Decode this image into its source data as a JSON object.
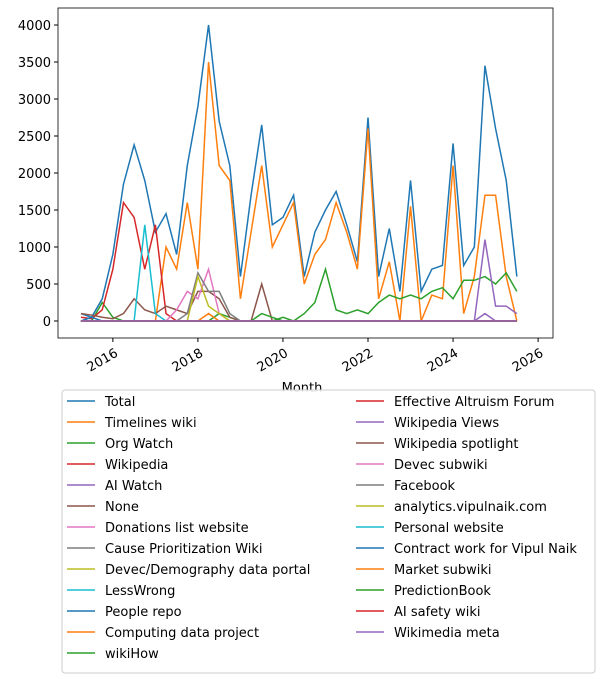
{
  "chart_data": {
    "type": "line",
    "x_label": "Month",
    "x": [
      2015.25,
      2015.5,
      2015.75,
      2016,
      2016.25,
      2016.5,
      2016.75,
      2017,
      2017.25,
      2017.5,
      2017.75,
      2018,
      2018.25,
      2018.5,
      2018.75,
      2019,
      2019.25,
      2019.5,
      2019.75,
      2020,
      2020.25,
      2020.5,
      2020.75,
      2021,
      2021.25,
      2021.5,
      2021.75,
      2022,
      2022.25,
      2022.5,
      2022.75,
      2023,
      2023.25,
      2023.5,
      2023.75,
      2024,
      2024.25,
      2024.5,
      2024.75,
      2025,
      2025.25,
      2025.5
    ],
    "xlim": [
      2014.71,
      2026.35
    ],
    "xticks": [
      2016,
      2018,
      2020,
      2022,
      2024,
      2026
    ],
    "ylim": [
      -230,
      4230
    ],
    "yticks": [
      0,
      500,
      1000,
      1500,
      2000,
      2500,
      3000,
      3500,
      4000
    ],
    "series": [
      {
        "name": "Total",
        "color": "#1f77b4",
        "values": [
          100,
          50,
          300,
          900,
          1850,
          2380,
          1900,
          1200,
          1450,
          900,
          2100,
          2900,
          4000,
          2700,
          2100,
          600,
          1700,
          2650,
          1300,
          1400,
          1700,
          600,
          1200,
          1500,
          1750,
          1300,
          800,
          2750,
          600,
          1250,
          400,
          1900,
          400,
          700,
          750,
          2400,
          750,
          1000,
          3450,
          2600,
          1900,
          600
        ]
      },
      {
        "name": "Timelines wiki",
        "color": "#ff7f0e",
        "values": [
          0,
          0,
          0,
          0,
          0,
          0,
          0,
          0,
          1000,
          700,
          1600,
          700,
          3500,
          2100,
          1900,
          300,
          1200,
          2100,
          1000,
          1300,
          1600,
          500,
          900,
          1100,
          1600,
          1200,
          700,
          2600,
          300,
          800,
          0,
          1550,
          0,
          350,
          300,
          2100,
          100,
          600,
          1700,
          1700,
          600,
          0
        ]
      },
      {
        "name": "Org Watch",
        "color": "#2ca02c",
        "values": [
          0,
          0,
          250,
          50,
          0,
          0,
          0,
          0,
          0,
          0,
          0,
          0,
          0,
          100,
          50,
          0,
          0,
          0,
          0,
          50,
          0,
          100,
          250,
          700,
          150,
          100,
          150,
          100,
          250,
          350,
          300,
          350,
          300,
          400,
          450,
          300,
          550,
          550,
          600,
          500,
          650,
          400
        ]
      },
      {
        "name": "Wikipedia",
        "color": "#d62728",
        "values": [
          50,
          30,
          150,
          700,
          1600,
          1400,
          700,
          1300,
          100,
          0,
          0,
          0,
          0,
          0,
          0,
          0,
          0,
          0,
          0,
          0,
          0,
          0,
          0,
          0,
          0,
          0,
          0,
          0,
          0,
          0,
          0,
          0,
          0,
          0,
          0,
          0,
          0,
          0,
          0,
          0,
          0,
          0
        ]
      },
      {
        "name": "AI Watch",
        "color": "#9467bd",
        "values": [
          0,
          0,
          0,
          0,
          0,
          0,
          0,
          0,
          0,
          0,
          0,
          0,
          0,
          0,
          0,
          0,
          0,
          0,
          0,
          0,
          0,
          0,
          0,
          0,
          0,
          0,
          0,
          0,
          0,
          0,
          0,
          0,
          0,
          0,
          0,
          0,
          0,
          0,
          1100,
          200,
          200,
          100
        ]
      },
      {
        "name": "None",
        "color": "#8c564b",
        "values": [
          100,
          80,
          50,
          30,
          100,
          300,
          150,
          100,
          200,
          150,
          100,
          400,
          400,
          300,
          50,
          0,
          0,
          500,
          0,
          0,
          0,
          0,
          0,
          0,
          0,
          0,
          0,
          0,
          0,
          0,
          0,
          0,
          0,
          0,
          0,
          0,
          0,
          0,
          0,
          0,
          0,
          0
        ]
      },
      {
        "name": "Donations list website",
        "color": "#e377c2",
        "values": [
          0,
          0,
          0,
          0,
          0,
          0,
          0,
          0,
          0,
          150,
          400,
          300,
          700,
          100,
          0,
          0,
          0,
          0,
          0,
          0,
          0,
          0,
          0,
          0,
          0,
          0,
          0,
          0,
          0,
          0,
          0,
          0,
          0,
          0,
          0,
          0,
          0,
          0,
          0,
          0,
          0,
          0
        ]
      },
      {
        "name": "Cause Prioritization Wiki",
        "color": "#7f7f7f",
        "values": [
          0,
          0,
          0,
          0,
          0,
          0,
          0,
          0,
          0,
          0,
          100,
          650,
          400,
          400,
          100,
          0,
          0,
          0,
          0,
          0,
          0,
          0,
          0,
          0,
          0,
          0,
          0,
          0,
          0,
          0,
          0,
          0,
          0,
          0,
          0,
          0,
          0,
          0,
          0,
          0,
          0,
          0
        ]
      },
      {
        "name": "Devec/Demography data portal",
        "color": "#bcbd22",
        "values": [
          0,
          0,
          0,
          0,
          0,
          0,
          0,
          0,
          0,
          0,
          0,
          600,
          200,
          100,
          0,
          0,
          0,
          0,
          0,
          0,
          0,
          0,
          0,
          0,
          0,
          0,
          0,
          0,
          0,
          0,
          0,
          0,
          0,
          0,
          0,
          0,
          0,
          0,
          0,
          0,
          0,
          0
        ]
      },
      {
        "name": "LessWrong",
        "color": "#17becf",
        "values": [
          0,
          0,
          0,
          0,
          0,
          0,
          1300,
          100,
          0,
          0,
          0,
          0,
          0,
          0,
          0,
          0,
          0,
          0,
          0,
          0,
          0,
          0,
          0,
          0,
          0,
          0,
          0,
          0,
          0,
          0,
          0,
          0,
          0,
          0,
          0,
          0,
          0,
          0,
          0,
          0,
          0,
          0
        ]
      },
      {
        "name": "People repo",
        "color": "#1f77b4",
        "values": [
          0,
          50,
          0,
          0,
          0,
          0,
          0,
          0,
          0,
          0,
          0,
          0,
          0,
          0,
          0,
          0,
          0,
          0,
          0,
          0,
          0,
          0,
          0,
          0,
          0,
          0,
          0,
          0,
          0,
          0,
          0,
          0,
          0,
          0,
          0,
          0,
          0,
          0,
          0,
          0,
          0,
          0
        ]
      },
      {
        "name": "Computing data project",
        "color": "#ff7f0e",
        "values": [
          0,
          0,
          0,
          0,
          0,
          0,
          0,
          0,
          0,
          0,
          0,
          0,
          100,
          0,
          0,
          0,
          0,
          0,
          0,
          0,
          0,
          0,
          0,
          0,
          0,
          0,
          0,
          0,
          0,
          0,
          0,
          0,
          0,
          0,
          0,
          0,
          0,
          0,
          0,
          0,
          0,
          0
        ]
      },
      {
        "name": "wikiHow",
        "color": "#2ca02c",
        "values": [
          0,
          0,
          0,
          0,
          0,
          0,
          0,
          0,
          0,
          0,
          0,
          0,
          0,
          0,
          0,
          0,
          0,
          100,
          50,
          0,
          0,
          0,
          0,
          0,
          0,
          0,
          0,
          0,
          0,
          0,
          0,
          0,
          0,
          0,
          0,
          0,
          0,
          0,
          0,
          0,
          0,
          0
        ]
      },
      {
        "name": "Effective Altruism Forum",
        "color": "#d62728",
        "values": [
          0,
          0,
          0,
          0,
          0,
          0,
          0,
          0,
          0,
          0,
          0,
          0,
          0,
          0,
          0,
          0,
          0,
          0,
          0,
          0,
          0,
          0,
          0,
          0,
          0,
          0,
          0,
          0,
          0,
          0,
          0,
          0,
          0,
          0,
          0,
          0,
          0,
          0,
          0,
          0,
          0,
          0
        ]
      },
      {
        "name": "Wikipedia Views",
        "color": "#9467bd",
        "values": [
          0,
          0,
          0,
          0,
          0,
          0,
          0,
          0,
          0,
          0,
          0,
          0,
          0,
          0,
          0,
          0,
          0,
          0,
          0,
          0,
          0,
          0,
          0,
          0,
          0,
          0,
          0,
          0,
          0,
          0,
          0,
          0,
          0,
          0,
          0,
          0,
          0,
          0,
          100,
          0,
          0,
          0
        ]
      },
      {
        "name": "Wikipedia spotlight",
        "color": "#8c564b",
        "values": [
          0,
          0,
          0,
          0,
          0,
          0,
          0,
          0,
          0,
          0,
          0,
          0,
          0,
          0,
          0,
          0,
          0,
          0,
          0,
          0,
          0,
          0,
          0,
          0,
          0,
          0,
          0,
          0,
          0,
          0,
          0,
          0,
          0,
          0,
          0,
          0,
          0,
          0,
          0,
          0,
          0,
          0
        ]
      },
      {
        "name": "Devec subwiki",
        "color": "#e377c2",
        "values": [
          0,
          0,
          0,
          0,
          0,
          0,
          0,
          0,
          0,
          0,
          0,
          0,
          0,
          0,
          0,
          0,
          0,
          0,
          0,
          0,
          0,
          0,
          0,
          0,
          0,
          0,
          0,
          0,
          0,
          0,
          0,
          0,
          0,
          0,
          0,
          0,
          0,
          0,
          0,
          0,
          0,
          0
        ]
      },
      {
        "name": "Facebook",
        "color": "#7f7f7f",
        "values": [
          0,
          0,
          0,
          0,
          0,
          0,
          0,
          0,
          0,
          0,
          0,
          0,
          0,
          0,
          0,
          0,
          0,
          0,
          0,
          0,
          0,
          0,
          0,
          0,
          0,
          0,
          0,
          0,
          0,
          0,
          0,
          0,
          0,
          0,
          0,
          0,
          0,
          0,
          0,
          0,
          0,
          0
        ]
      },
      {
        "name": "analytics.vipulnaik.com",
        "color": "#bcbd22",
        "values": [
          0,
          0,
          0,
          0,
          0,
          0,
          0,
          0,
          0,
          0,
          0,
          0,
          0,
          0,
          0,
          0,
          0,
          0,
          0,
          0,
          0,
          0,
          0,
          0,
          0,
          0,
          0,
          0,
          0,
          0,
          0,
          0,
          0,
          0,
          0,
          0,
          0,
          0,
          0,
          0,
          0,
          0
        ]
      },
      {
        "name": "Personal website",
        "color": "#17becf",
        "values": [
          0,
          0,
          0,
          0,
          0,
          0,
          0,
          0,
          0,
          0,
          0,
          0,
          0,
          0,
          0,
          0,
          0,
          0,
          0,
          0,
          0,
          0,
          0,
          0,
          0,
          0,
          0,
          0,
          0,
          0,
          0,
          0,
          0,
          0,
          0,
          0,
          0,
          0,
          0,
          0,
          0,
          0
        ]
      },
      {
        "name": "Contract work for Vipul Naik",
        "color": "#1f77b4",
        "values": [
          0,
          0,
          0,
          0,
          0,
          0,
          0,
          0,
          0,
          0,
          0,
          0,
          0,
          0,
          0,
          0,
          0,
          0,
          0,
          0,
          0,
          0,
          0,
          0,
          0,
          0,
          0,
          0,
          0,
          0,
          0,
          0,
          0,
          0,
          0,
          0,
          0,
          0,
          0,
          0,
          0,
          0
        ]
      },
      {
        "name": "Market subwiki",
        "color": "#ff7f0e",
        "values": [
          0,
          0,
          0,
          0,
          0,
          0,
          0,
          0,
          0,
          0,
          0,
          0,
          0,
          0,
          0,
          0,
          0,
          0,
          0,
          0,
          0,
          0,
          0,
          0,
          0,
          0,
          0,
          0,
          0,
          0,
          0,
          0,
          0,
          0,
          0,
          0,
          0,
          0,
          0,
          0,
          0,
          0
        ]
      },
      {
        "name": "PredictionBook",
        "color": "#2ca02c",
        "values": [
          0,
          0,
          0,
          0,
          0,
          0,
          0,
          0,
          0,
          0,
          0,
          0,
          0,
          0,
          0,
          0,
          0,
          0,
          0,
          0,
          0,
          0,
          0,
          0,
          0,
          0,
          0,
          0,
          0,
          0,
          0,
          0,
          0,
          0,
          0,
          0,
          0,
          0,
          0,
          0,
          0,
          0
        ]
      },
      {
        "name": "AI safety wiki",
        "color": "#d62728",
        "values": [
          0,
          0,
          0,
          0,
          0,
          0,
          0,
          0,
          0,
          0,
          0,
          0,
          0,
          0,
          0,
          0,
          0,
          0,
          0,
          0,
          0,
          0,
          0,
          0,
          0,
          0,
          0,
          0,
          0,
          0,
          0,
          0,
          0,
          0,
          0,
          0,
          0,
          0,
          0,
          0,
          0,
          0
        ]
      },
      {
        "name": "Wikimedia meta",
        "color": "#9467bd",
        "values": [
          0,
          0,
          0,
          0,
          0,
          0,
          0,
          0,
          0,
          0,
          0,
          0,
          0,
          0,
          0,
          0,
          0,
          0,
          0,
          0,
          0,
          0,
          0,
          0,
          0,
          0,
          0,
          0,
          0,
          0,
          0,
          0,
          0,
          0,
          0,
          0,
          0,
          0,
          0,
          0,
          0,
          0
        ]
      }
    ]
  }
}
